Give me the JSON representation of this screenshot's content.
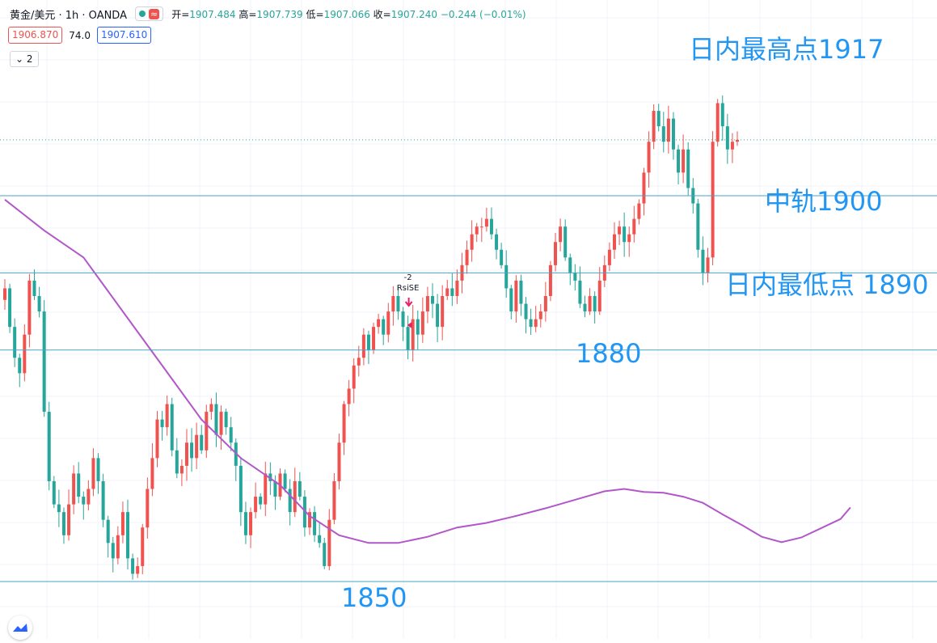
{
  "header": {
    "symbol": "黄金/美元 · 1h · OANDA",
    "open_label": "开=",
    "open": "1907.484",
    "high_label": "高=",
    "high": "1907.739",
    "low_label": "低=",
    "low": "1907.066",
    "close_label": "收=",
    "close": "1907.240",
    "change": "−0.244 (−0.01%)",
    "sell_price": "1906.870",
    "spread": "74.0",
    "buy_price": "1907.610",
    "indicator_toggle": "2"
  },
  "icons": [
    "status-dot-icon",
    "wave-icon",
    "chevron-down-icon",
    "tradingview-logo-icon",
    "arrow-down-signal-icon",
    "arrow-left-signal-icon"
  ],
  "colors": {
    "up": "#ef5350",
    "down": "#26a69a",
    "ma": "#b257c9",
    "level": "#4aa3c7",
    "annotation": "#2196f3"
  },
  "chart_data": {
    "type": "candlestick",
    "ylim": [
      1843,
      1925
    ],
    "levels": [
      {
        "value": 1917,
        "label": "日内最高点1917"
      },
      {
        "value": 1900,
        "label": "中轨1900"
      },
      {
        "value": 1890,
        "label": "日内最低点 1890"
      },
      {
        "value": 1880,
        "label": "1880"
      },
      {
        "value": 1850,
        "label": "1850"
      }
    ],
    "current_price": 1907.24,
    "signal": {
      "label": "RsiSE",
      "value": "-2",
      "index": 82
    },
    "close_series": [
      1888.0,
      1883.0,
      1879.0,
      1877.0,
      1882.0,
      1889.0,
      1887.0,
      1885.0,
      1872.0,
      1863.0,
      1860.0,
      1859.0,
      1856.0,
      1860.0,
      1864.0,
      1861.0,
      1860.0,
      1862.0,
      1866.0,
      1863.0,
      1858.0,
      1855.0,
      1853.0,
      1856.0,
      1859.0,
      1853.0,
      1851.0,
      1852.0,
      1857.0,
      1862.0,
      1866.0,
      1871.0,
      1870.0,
      1873.0,
      1867.0,
      1864.0,
      1865.0,
      1868.0,
      1866.0,
      1869.0,
      1867.0,
      1872.0,
      1873.0,
      1869.0,
      1872.0,
      1870.0,
      1868.0,
      1865.0,
      1859.0,
      1856.0,
      1859.0,
      1861.0,
      1860.0,
      1864.0,
      1863.0,
      1861.0,
      1864.0,
      1862.0,
      1859.0,
      1863.0,
      1861.0,
      1857.0,
      1859.0,
      1856.0,
      1855.0,
      1852.0,
      1858.0,
      1863.0,
      1868.0,
      1873.0,
      1875.0,
      1878.0,
      1879.0,
      1882.0,
      1880.0,
      1883.0,
      1884.0,
      1882.0,
      1885.0,
      1887.0,
      1885.0,
      1883.0,
      1880.0,
      1884.0,
      1882.0,
      1885.0,
      1887.0,
      1886.0,
      1883.0,
      1887.0,
      1888.0,
      1887.0,
      1889.0,
      1891.0,
      1893.0,
      1895.0,
      1896.0,
      1896.0,
      1897.0,
      1895.0,
      1893.0,
      1891.0,
      1888.0,
      1885.0,
      1889.0,
      1886.0,
      1884.0,
      1883.0,
      1884.0,
      1885.0,
      1887.0,
      1891.0,
      1894.0,
      1896.0,
      1892.0,
      1890.0,
      1889.0,
      1886.0,
      1885.0,
      1887.0,
      1885.0,
      1889.0,
      1891.0,
      1893.0,
      1895.0,
      1896.0,
      1894.0,
      1895.0,
      1897.0,
      1899.0,
      1903.0,
      1907.0,
      1911.0,
      1909.0,
      1907.0,
      1910.0,
      1906.0,
      1903.0,
      1906.0,
      1901.0,
      1899.0,
      1893.0,
      1890.0,
      1892.0,
      1907.0,
      1912.0,
      1909.0,
      1906.0,
      1907.0,
      1907.24
    ],
    "ma_series": [
      1899.5,
      1895.5,
      1892.0,
      1885.0,
      1878.0,
      1871.0,
      1866.0,
      1862.5,
      1858.5,
      1856.0,
      1855.0,
      1855.0,
      1855.8,
      1857.0,
      1857.6,
      1858.5,
      1859.5,
      1860.6,
      1861.7,
      1862.0,
      1861.6,
      1861.5,
      1861.0,
      1860.2,
      1858.7,
      1857.3,
      1855.8,
      1855.1,
      1855.7,
      1856.9,
      1858.1,
      1859.6
    ],
    "ma_index": [
      0,
      8,
      16,
      24,
      32,
      40,
      48,
      56,
      62,
      68,
      74,
      80,
      86,
      92,
      98,
      104,
      110,
      116,
      122,
      126,
      130,
      134,
      138,
      142,
      146,
      150,
      154,
      158,
      162,
      166,
      170,
      172
    ]
  }
}
